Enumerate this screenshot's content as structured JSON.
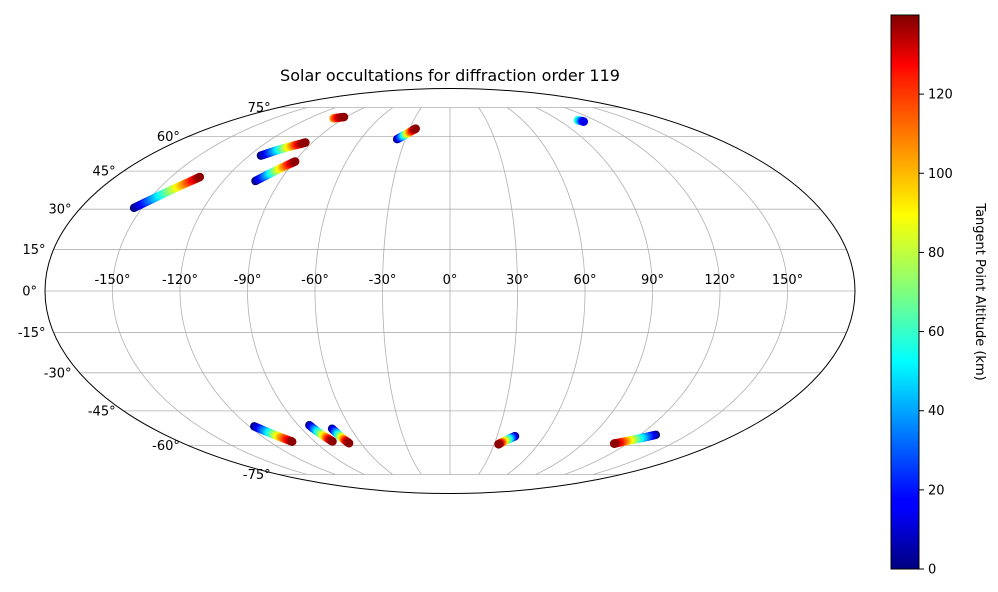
{
  "chart_data": {
    "type": "scatter",
    "projection": "mollweide",
    "title": "Solar occultations for diffraction order 119",
    "xlabel": "",
    "ylabel": "",
    "lon_ticks": [
      -150,
      -120,
      -90,
      -60,
      -30,
      0,
      30,
      60,
      90,
      120,
      150
    ],
    "lon_tick_labels": [
      "-150°",
      "-120°",
      "-90°",
      "-60°",
      "-30°",
      "0°",
      "30°",
      "60°",
      "90°",
      "120°",
      "150°"
    ],
    "lat_ticks": [
      75,
      60,
      45,
      30,
      15,
      0,
      -15,
      -30,
      -45,
      -60,
      -75
    ],
    "lat_tick_labels": [
      "75°",
      "60°",
      "45°",
      "30°",
      "15°",
      "0°",
      "-15°",
      "-30°",
      "-45°",
      "-60°",
      "-75°"
    ],
    "grid": true,
    "colorbar": {
      "label": "Tangent Point Altitude (km)",
      "min": 0,
      "max": 140,
      "ticks": [
        0,
        20,
        40,
        60,
        80,
        100,
        120
      ],
      "tick_labels": [
        "0",
        "20",
        "40",
        "60",
        "80",
        "100",
        "120"
      ],
      "colormap": "jet"
    },
    "series": [
      {
        "points": [
          [
            -154,
            30.5,
            0
          ],
          [
            -148,
            34.2,
            40
          ],
          [
            -142,
            38.0,
            80
          ],
          [
            -136,
            41.6,
            125
          ],
          [
            -134.5,
            42.6,
            138
          ]
        ]
      },
      {
        "points": [
          [
            -113,
            51.5,
            0
          ],
          [
            -107,
            53.8,
            45
          ],
          [
            -101,
            55.6,
            95
          ],
          [
            -96,
            56.8,
            135
          ],
          [
            -94.5,
            57.3,
            138
          ]
        ]
      },
      {
        "points": [
          [
            -103,
            41.0,
            0
          ],
          [
            -99,
            43.5,
            40
          ],
          [
            -95,
            46.0,
            85
          ],
          [
            -91,
            48.2,
            125
          ],
          [
            -89.5,
            49.0,
            138
          ]
        ]
      },
      {
        "points": [
          [
            -99,
            69.0,
            100
          ],
          [
            -95,
            69.4,
            130
          ],
          [
            -92,
            69.7,
            138
          ]
        ]
      },
      {
        "points": [
          [
            -35.5,
            58.8,
            0
          ],
          [
            -32.5,
            60.3,
            40
          ],
          [
            -29.5,
            61.8,
            90
          ],
          [
            -26.5,
            63.3,
            130
          ],
          [
            -25.5,
            63.8,
            138
          ]
        ]
      },
      {
        "points": [
          [
            105.5,
            68.0,
            65
          ],
          [
            107.5,
            67.6,
            35
          ],
          [
            108.5,
            67.3,
            15
          ]
        ]
      },
      {
        "points": [
          [
            -117,
            -51.5,
            0
          ],
          [
            -113,
            -54.0,
            45
          ],
          [
            -109,
            -56.2,
            95
          ],
          [
            -105.5,
            -58.0,
            130
          ],
          [
            -105,
            -58.3,
            138
          ]
        ]
      },
      {
        "points": [
          [
            -83.5,
            -51.0,
            0
          ],
          [
            -82,
            -53.6,
            45
          ],
          [
            -80,
            -56.1,
            95
          ],
          [
            -78.5,
            -57.7,
            130
          ],
          [
            -78,
            -58.2,
            138
          ]
        ]
      },
      {
        "points": [
          [
            -71.5,
            -52.5,
            0
          ],
          [
            -70.5,
            -54.8,
            45
          ],
          [
            -69.5,
            -57.0,
            95
          ],
          [
            -68.5,
            -58.4,
            130
          ],
          [
            -68,
            -59.0,
            138
          ]
        ]
      },
      {
        "points": [
          [
            41.5,
            -55.8,
            0
          ],
          [
            38.5,
            -57.0,
            45
          ],
          [
            35.5,
            -58.3,
            90
          ],
          [
            33.5,
            -59.2,
            125
          ],
          [
            33,
            -59.5,
            138
          ]
        ]
      },
      {
        "points": [
          [
            130,
            -55.2,
            0
          ],
          [
            124,
            -56.6,
            45
          ],
          [
            117,
            -58.0,
            95
          ],
          [
            112,
            -59.0,
            130
          ],
          [
            111,
            -59.2,
            138
          ]
        ]
      }
    ]
  }
}
